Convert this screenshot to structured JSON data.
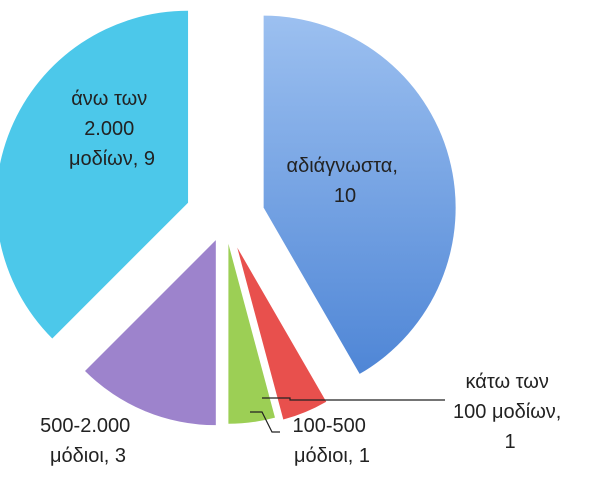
{
  "chart_data": {
    "type": "pie",
    "values": [
      10,
      1,
      1,
      3,
      9
    ],
    "value_labels": [
      "αδιάγνωστα, 10",
      "κάτω των 100 μοδίων, 1",
      "100-500 μόδιοι, 1",
      "500-2.000 μόδιοι, 3",
      "άνω των 2.000 μοδίων, 9"
    ],
    "colors": [
      "#6a9ee3",
      "#e8504d",
      "#9ccf55",
      "#9d83cc",
      "#4cc8ea"
    ]
  }
}
